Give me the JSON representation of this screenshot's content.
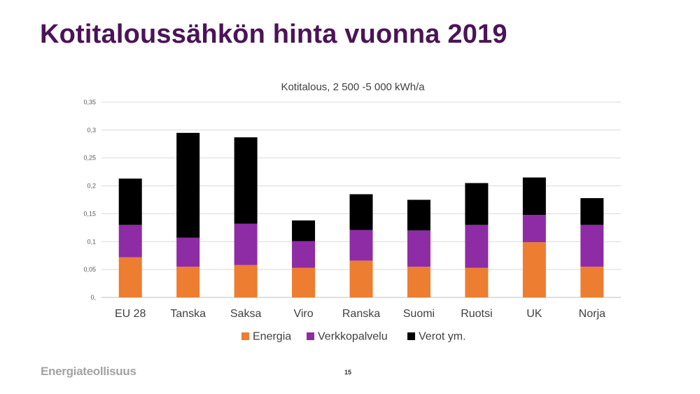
{
  "slide": {
    "title": "Kotitaloussähkön hinta vuonna 2019",
    "footer_logo": "Energiateollisuus",
    "page_number": "15"
  },
  "chart_data": {
    "type": "bar",
    "stacked": true,
    "title": "Kotitalous, 2 500 -5 000 kWh/a",
    "xlabel": "",
    "ylabel": "",
    "categories": [
      "EU 28",
      "Tanska",
      "Saksa",
      "Viro",
      "Ranska",
      "Suomi",
      "Ruotsi",
      "UK",
      "Norja"
    ],
    "series": [
      {
        "name": "Energia",
        "color": "#ed7d31",
        "values": [
          0.072,
          0.055,
          0.058,
          0.053,
          0.066,
          0.055,
          0.053,
          0.099,
          0.055
        ]
      },
      {
        "name": "Verkkopalvelu",
        "color": "#8e2ca5",
        "values": [
          0.058,
          0.052,
          0.074,
          0.048,
          0.055,
          0.065,
          0.077,
          0.049,
          0.075
        ]
      },
      {
        "name": "Verot ym.",
        "color": "#000000",
        "values": [
          0.083,
          0.188,
          0.155,
          0.037,
          0.064,
          0.055,
          0.075,
          0.067,
          0.048
        ]
      }
    ],
    "ylim": [
      0,
      0.35
    ],
    "y_ticks": [
      0,
      0.05,
      0.1,
      0.15,
      0.2,
      0.25,
      0.3,
      0.35
    ],
    "y_tick_labels": [
      "0,",
      "0,05",
      "0,1",
      "0,15",
      "0,2",
      "0,25",
      "0,3",
      "0,35"
    ],
    "grid": true,
    "legend_position": "bottom"
  }
}
